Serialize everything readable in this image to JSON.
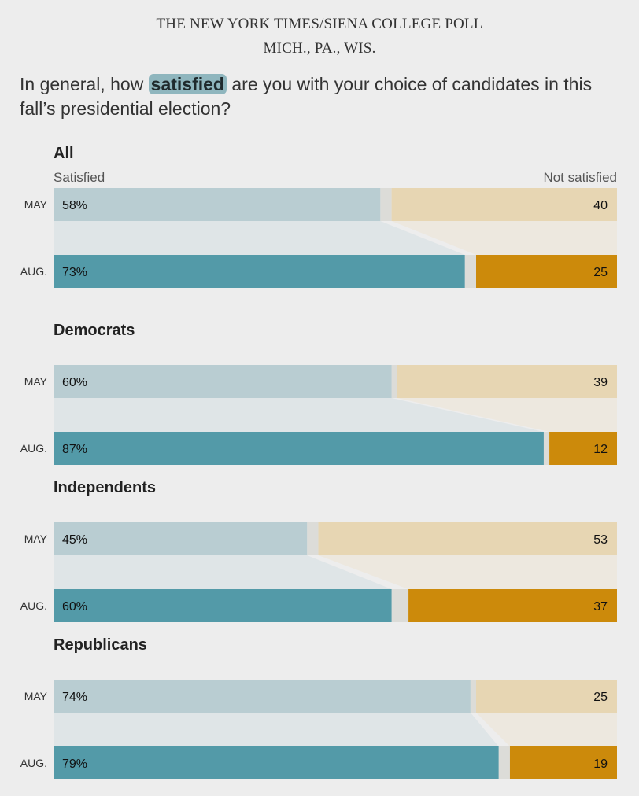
{
  "header": {
    "kicker_line1": "THE NEW YORK TIMES/SIENA COLLEGE POLL",
    "kicker_line2": "MICH., PA., WIS.",
    "question_before": "In general, how",
    "question_highlight": "satisfied",
    "question_after": "are you with your choice of candidates in this fall’s presidential election?"
  },
  "legend": {
    "left": "Satisfied",
    "right": "Not satisfied"
  },
  "colors": {
    "satisfied_may": "#b9cdd2",
    "satisfied_aug": "#539aa8",
    "not_satisfied_may": "#e7d6b3",
    "not_satisfied_aug": "#cc8a0b",
    "gap": "#dcdcd8",
    "connector_left": "#dfe5e7",
    "connector_right": "#ede8df"
  },
  "chart_data": {
    "type": "bar",
    "orientation": "horizontal-stacked",
    "title": "In general, how satisfied are you with your choice of candidates in this fall’s presidential election?",
    "xlim": [
      0,
      100
    ],
    "series_names": [
      "Satisfied",
      "Not satisfied"
    ],
    "groups": [
      {
        "name": "All",
        "rows": [
          {
            "label": "MAY",
            "satisfied": 58,
            "not_satisfied": 40,
            "satisfied_text": "58%",
            "not_satisfied_text": "40"
          },
          {
            "label": "AUG.",
            "satisfied": 73,
            "not_satisfied": 25,
            "satisfied_text": "73%",
            "not_satisfied_text": "25"
          }
        ]
      },
      {
        "name": "Democrats",
        "rows": [
          {
            "label": "MAY",
            "satisfied": 60,
            "not_satisfied": 39,
            "satisfied_text": "60%",
            "not_satisfied_text": "39"
          },
          {
            "label": "AUG.",
            "satisfied": 87,
            "not_satisfied": 12,
            "satisfied_text": "87%",
            "not_satisfied_text": "12"
          }
        ]
      },
      {
        "name": "Independents",
        "rows": [
          {
            "label": "MAY",
            "satisfied": 45,
            "not_satisfied": 53,
            "satisfied_text": "45%",
            "not_satisfied_text": "53"
          },
          {
            "label": "AUG.",
            "satisfied": 60,
            "not_satisfied": 37,
            "satisfied_text": "60%",
            "not_satisfied_text": "37"
          }
        ]
      },
      {
        "name": "Republicans",
        "rows": [
          {
            "label": "MAY",
            "satisfied": 74,
            "not_satisfied": 25,
            "satisfied_text": "74%",
            "not_satisfied_text": "25"
          },
          {
            "label": "AUG.",
            "satisfied": 79,
            "not_satisfied": 19,
            "satisfied_text": "79%",
            "not_satisfied_text": "19"
          }
        ]
      }
    ]
  }
}
